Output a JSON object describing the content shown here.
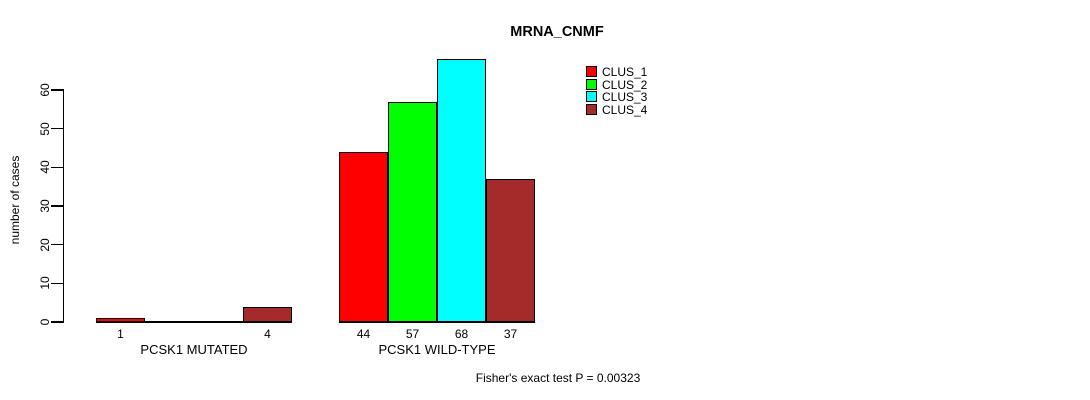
{
  "chart_data": {
    "type": "bar",
    "title": "MRNA_CNMF",
    "ylabel": "number of cases",
    "xlabel": "",
    "ylim": [
      0,
      60
    ],
    "yticks": [
      0,
      10,
      20,
      30,
      40,
      50,
      60
    ],
    "grid": false,
    "legend_position": "top-right",
    "categories": [
      "PCSK1 MUTATED",
      "PCSK1 WILD-TYPE"
    ],
    "series": [
      {
        "name": "CLUS_1",
        "color": "#FF0000",
        "values": [
          1,
          44
        ]
      },
      {
        "name": "CLUS_2",
        "color": "#00FF00",
        "values": [
          0,
          57
        ]
      },
      {
        "name": "CLUS_3",
        "color": "#00FFFF",
        "values": [
          0,
          68
        ]
      },
      {
        "name": "CLUS_4",
        "color": "#A52A2A",
        "values": [
          4,
          37
        ]
      }
    ],
    "bar_value_labels": [
      [
        "1",
        "",
        "",
        "4"
      ],
      [
        "44",
        "57",
        "68",
        "37"
      ]
    ],
    "footnote": "Fisher's exact test P = 0.00323"
  },
  "colors": {
    "background": "#FFFFFF",
    "axis": "#000000",
    "text": "#000000"
  }
}
